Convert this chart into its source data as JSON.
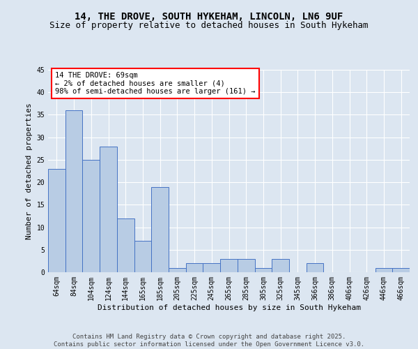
{
  "title1": "14, THE DROVE, SOUTH HYKEHAM, LINCOLN, LN6 9UF",
  "title2": "Size of property relative to detached houses in South Hykeham",
  "xlabel": "Distribution of detached houses by size in South Hykeham",
  "ylabel": "Number of detached properties",
  "categories": [
    "64sqm",
    "84sqm",
    "104sqm",
    "124sqm",
    "144sqm",
    "165sqm",
    "185sqm",
    "205sqm",
    "225sqm",
    "245sqm",
    "265sqm",
    "285sqm",
    "305sqm",
    "325sqm",
    "345sqm",
    "366sqm",
    "386sqm",
    "406sqm",
    "426sqm",
    "446sqm",
    "466sqm"
  ],
  "values": [
    23,
    36,
    25,
    28,
    12,
    7,
    19,
    1,
    2,
    2,
    3,
    3,
    1,
    3,
    0,
    2,
    0,
    0,
    0,
    1,
    1
  ],
  "bar_color": "#b8cce4",
  "bar_edge_color": "#4472c4",
  "background_color": "#dce6f1",
  "plot_bg_color": "#dce6f1",
  "annotation_text": "14 THE DROVE: 69sqm\n← 2% of detached houses are smaller (4)\n98% of semi-detached houses are larger (161) →",
  "annotation_box_color": "#ffffff",
  "annotation_border_color": "#ff0000",
  "ylim": [
    0,
    45
  ],
  "yticks": [
    0,
    5,
    10,
    15,
    20,
    25,
    30,
    35,
    40,
    45
  ],
  "footer_text": "Contains HM Land Registry data © Crown copyright and database right 2025.\nContains public sector information licensed under the Open Government Licence v3.0.",
  "title_fontsize": 10,
  "subtitle_fontsize": 9,
  "axis_fontsize": 8,
  "tick_fontsize": 7,
  "ann_fontsize": 7.5,
  "footer_fontsize": 6.5
}
